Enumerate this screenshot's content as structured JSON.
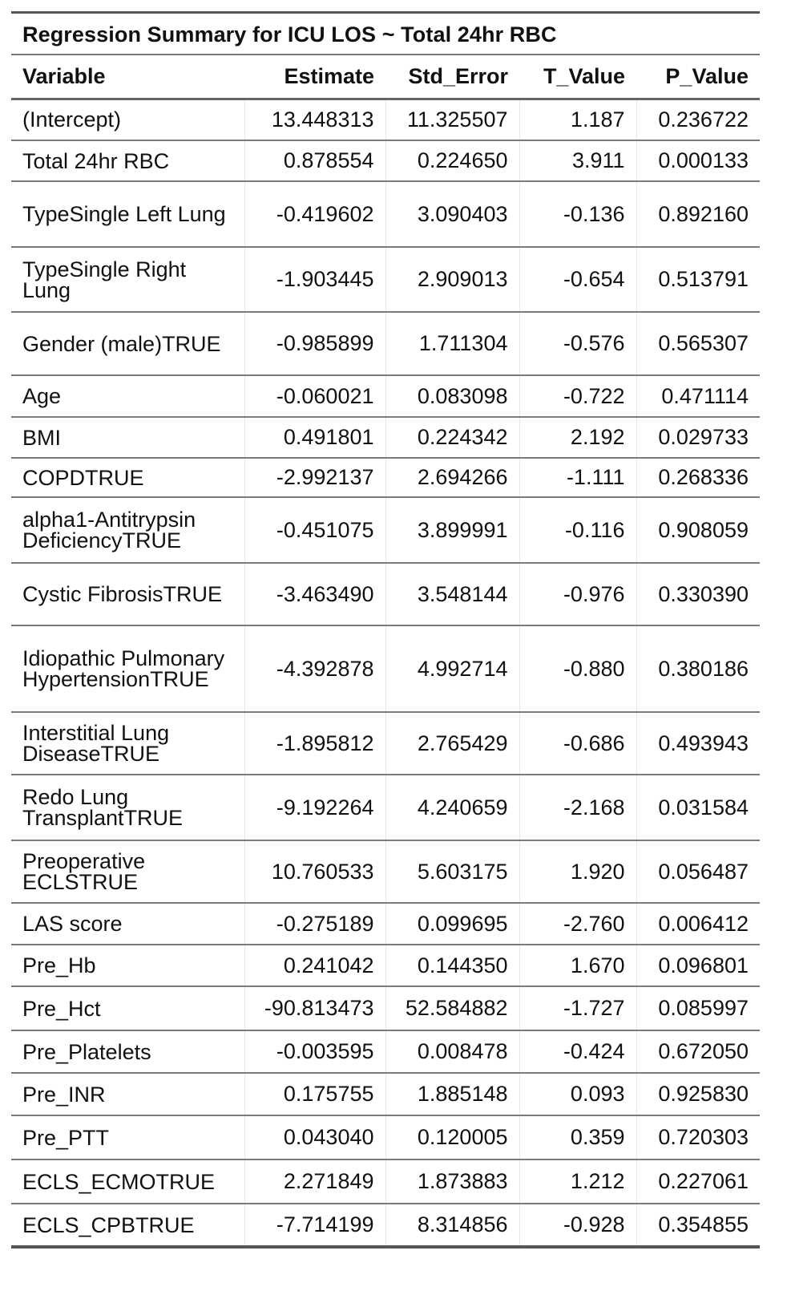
{
  "title": "Regression Summary for ICU LOS ~ Total 24hr RBC",
  "columns": [
    "Variable",
    "Estimate",
    "Std_Error",
    "T_Value",
    "P_Value"
  ],
  "rows": [
    {
      "variable": "(Intercept)",
      "estimate": "13.448313",
      "std_error": "11.325507",
      "t_value": "1.187",
      "p_value": "0.236722"
    },
    {
      "variable": "Total 24hr RBC",
      "estimate": "0.878554",
      "std_error": "0.224650",
      "t_value": "3.911",
      "p_value": "0.000133"
    },
    {
      "variable": "TypeSingle Left Lung",
      "estimate": "-0.419602",
      "std_error": "3.090403",
      "t_value": "-0.136",
      "p_value": "0.892160"
    },
    {
      "variable": "TypeSingle Right Lung",
      "estimate": "-1.903445",
      "std_error": "2.909013",
      "t_value": "-0.654",
      "p_value": "0.513791"
    },
    {
      "variable": "Gender (male)TRUE",
      "estimate": "-0.985899",
      "std_error": "1.711304",
      "t_value": "-0.576",
      "p_value": "0.565307"
    },
    {
      "variable": "Age",
      "estimate": "-0.060021",
      "std_error": "0.083098",
      "t_value": "-0.722",
      "p_value": "0.471114"
    },
    {
      "variable": "BMI",
      "estimate": "0.491801",
      "std_error": "0.224342",
      "t_value": "2.192",
      "p_value": "0.029733"
    },
    {
      "variable": "COPDTRUE",
      "estimate": "-2.992137",
      "std_error": "2.694266",
      "t_value": "-1.111",
      "p_value": "0.268336"
    },
    {
      "variable": "alpha1-Antitrypsin DeficiencyTRUE",
      "estimate": "-0.451075",
      "std_error": "3.899991",
      "t_value": "-0.116",
      "p_value": "0.908059"
    },
    {
      "variable": "Cystic FibrosisTRUE",
      "estimate": "-3.463490",
      "std_error": "3.548144",
      "t_value": "-0.976",
      "p_value": "0.330390"
    },
    {
      "variable": "Idiopathic Pulmonary HypertensionTRUE",
      "estimate": "-4.392878",
      "std_error": "4.992714",
      "t_value": "-0.880",
      "p_value": "0.380186"
    },
    {
      "variable": "Interstitial Lung DiseaseTRUE",
      "estimate": "-1.895812",
      "std_error": "2.765429",
      "t_value": "-0.686",
      "p_value": "0.493943"
    },
    {
      "variable": "Redo Lung TransplantTRUE",
      "estimate": "-9.192264",
      "std_error": "4.240659",
      "t_value": "-2.168",
      "p_value": "0.031584"
    },
    {
      "variable": "Preoperative ECLSTRUE",
      "estimate": "10.760533",
      "std_error": "5.603175",
      "t_value": "1.920",
      "p_value": "0.056487"
    },
    {
      "variable": "LAS score",
      "estimate": "-0.275189",
      "std_error": "0.099695",
      "t_value": "-2.760",
      "p_value": "0.006412"
    },
    {
      "variable": "Pre_Hb",
      "estimate": "0.241042",
      "std_error": "0.144350",
      "t_value": "1.670",
      "p_value": "0.096801"
    },
    {
      "variable": "Pre_Hct",
      "estimate": "-90.813473",
      "std_error": "52.584882",
      "t_value": "-1.727",
      "p_value": "0.085997"
    },
    {
      "variable": "Pre_Platelets",
      "estimate": "-0.003595",
      "std_error": "0.008478",
      "t_value": "-0.424",
      "p_value": "0.672050"
    },
    {
      "variable": "Pre_INR",
      "estimate": "0.175755",
      "std_error": "1.885148",
      "t_value": "0.093",
      "p_value": "0.925830"
    },
    {
      "variable": "Pre_PTT",
      "estimate": "0.043040",
      "std_error": "0.120005",
      "t_value": "0.359",
      "p_value": "0.720303"
    },
    {
      "variable": "ECLS_ECMOTRUE",
      "estimate": "2.271849",
      "std_error": "1.873883",
      "t_value": "1.212",
      "p_value": "0.227061"
    },
    {
      "variable": "ECLS_CPBTRUE",
      "estimate": "-7.714199",
      "std_error": "8.314856",
      "t_value": "-0.928",
      "p_value": "0.354855"
    }
  ]
}
